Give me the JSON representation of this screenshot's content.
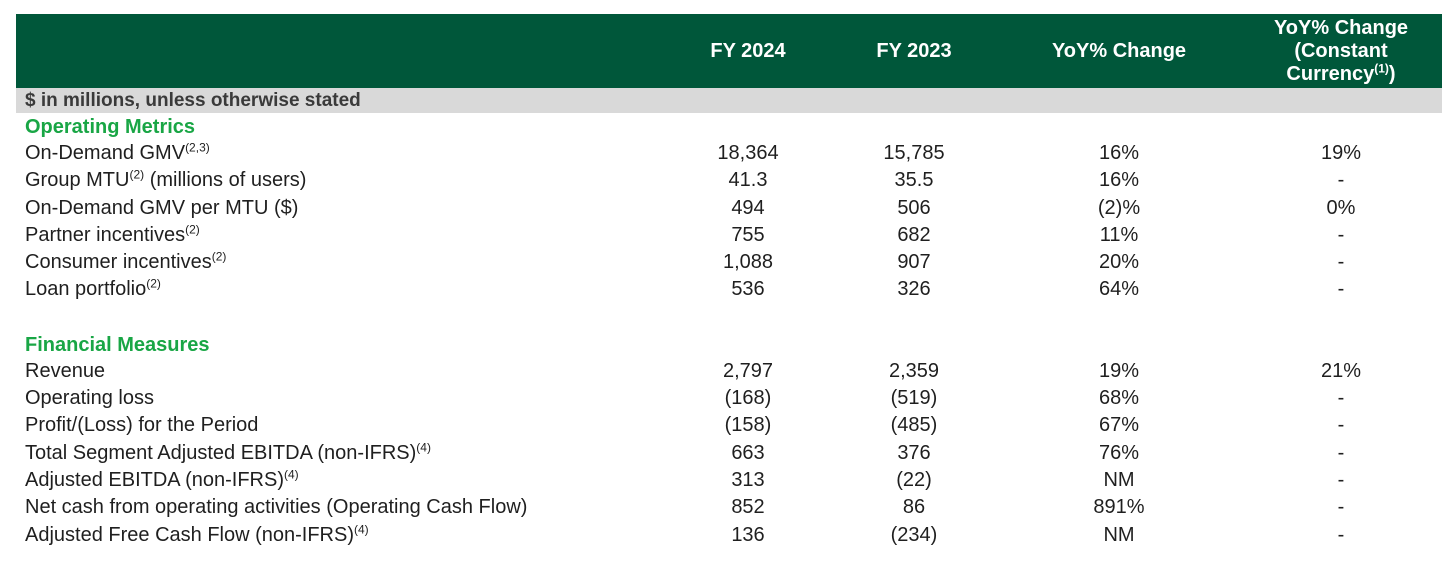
{
  "header": {
    "col1": "FY 2024",
    "col2": "FY 2023",
    "col3": "YoY% Change",
    "col4_line1": "YoY% Change",
    "col4_line2": "(Constant",
    "col4_line3": "Currency",
    "col4_sup": "(1)",
    "col4_line3_end": ")"
  },
  "units": "$ in millions, unless otherwise stated",
  "operating": {
    "title": "Operating Metrics",
    "rows": [
      {
        "label": "On-Demand GMV",
        "sup": "(2,3)",
        "rest": "",
        "fy24": "18,364",
        "fy23": "15,785",
        "yoy": "16%",
        "cc": "19%"
      },
      {
        "label": "Group MTU",
        "sup": "(2)",
        "rest": " (millions of users)",
        "fy24": "41.3",
        "fy23": "35.5",
        "yoy": "16%",
        "cc": "-"
      },
      {
        "label": "On-Demand GMV per MTU ($)",
        "sup": "",
        "rest": "",
        "fy24": "494",
        "fy23": "506",
        "yoy": "(2)%",
        "cc": "0%"
      },
      {
        "label": "Partner incentives",
        "sup": "(2)",
        "rest": "",
        "fy24": "755",
        "fy23": "682",
        "yoy": "11%",
        "cc": "-"
      },
      {
        "label": "Consumer incentives",
        "sup": "(2)",
        "rest": "",
        "fy24": "1,088",
        "fy23": "907",
        "yoy": "20%",
        "cc": "-"
      },
      {
        "label": "Loan portfolio",
        "sup": "(2)",
        "rest": "",
        "fy24": "536",
        "fy23": "326",
        "yoy": "64%",
        "cc": "-"
      }
    ]
  },
  "financial": {
    "title": "Financial Measures",
    "rows": [
      {
        "label": "Revenue",
        "sup": "",
        "rest": "",
        "fy24": "2,797",
        "fy23": "2,359",
        "yoy": "19%",
        "cc": "21%"
      },
      {
        "label": "Operating loss",
        "sup": "",
        "rest": "",
        "fy24": "(168)",
        "fy23": "(519)",
        "yoy": "68%",
        "cc": "-"
      },
      {
        "label": "Profit/(Loss) for the Period",
        "sup": "",
        "rest": "",
        "fy24": "(158)",
        "fy23": "(485)",
        "yoy": "67%",
        "cc": "-"
      },
      {
        "label": "Total Segment Adjusted EBITDA (non-IFRS)",
        "sup": "(4)",
        "rest": "",
        "fy24": "663",
        "fy23": "376",
        "yoy": "76%",
        "cc": "-"
      },
      {
        "label": "Adjusted EBITDA (non-IFRS)",
        "sup": "(4)",
        "rest": "",
        "fy24": "313",
        "fy23": "(22)",
        "yoy": "NM",
        "cc": "-"
      },
      {
        "label": "Net cash from operating activities (Operating Cash Flow)",
        "sup": "",
        "rest": "",
        "fy24": "852",
        "fy23": "86",
        "yoy": "891%",
        "cc": "-"
      },
      {
        "label": "Adjusted Free Cash Flow (non-IFRS)",
        "sup": "(4)",
        "rest": "",
        "fy24": "136",
        "fy23": "(234)",
        "yoy": "NM",
        "cc": "-"
      }
    ]
  }
}
